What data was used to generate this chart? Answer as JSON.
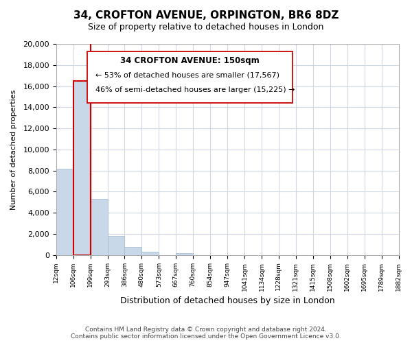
{
  "title": "34, CROFTON AVENUE, ORPINGTON, BR6 8DZ",
  "subtitle": "Size of property relative to detached houses in London",
  "xlabel": "Distribution of detached houses by size in London",
  "ylabel": "Number of detached properties",
  "bar_values": [
    8200,
    16500,
    5300,
    1800,
    750,
    300,
    0,
    200,
    0,
    0,
    0,
    0,
    0,
    0,
    0,
    0,
    0,
    0,
    0,
    0
  ],
  "bar_labels": [
    "12sqm",
    "106sqm",
    "199sqm",
    "293sqm",
    "386sqm",
    "480sqm",
    "573sqm",
    "667sqm",
    "760sqm",
    "854sqm",
    "947sqm",
    "1041sqm",
    "1134sqm",
    "1228sqm",
    "1321sqm",
    "1415sqm",
    "1508sqm",
    "1602sqm",
    "1695sqm",
    "1789sqm",
    "1882sqm"
  ],
  "bar_color": "#c8d8e8",
  "bar_edge_color": "#a0b8d0",
  "property_bar_index": 1,
  "property_line_color": "#cc0000",
  "ylim": [
    0,
    20000
  ],
  "yticks": [
    0,
    2000,
    4000,
    6000,
    8000,
    10000,
    12000,
    14000,
    16000,
    18000,
    20000
  ],
  "annotation_title": "34 CROFTON AVENUE: 150sqm",
  "annotation_line1": "← 53% of detached houses are smaller (17,567)",
  "annotation_line2": "46% of semi-detached houses are larger (15,225) →",
  "footer_line1": "Contains HM Land Registry data © Crown copyright and database right 2024.",
  "footer_line2": "Contains public sector information licensed under the Open Government Licence v3.0.",
  "background_color": "#ffffff",
  "grid_color": "#d0d8e8"
}
